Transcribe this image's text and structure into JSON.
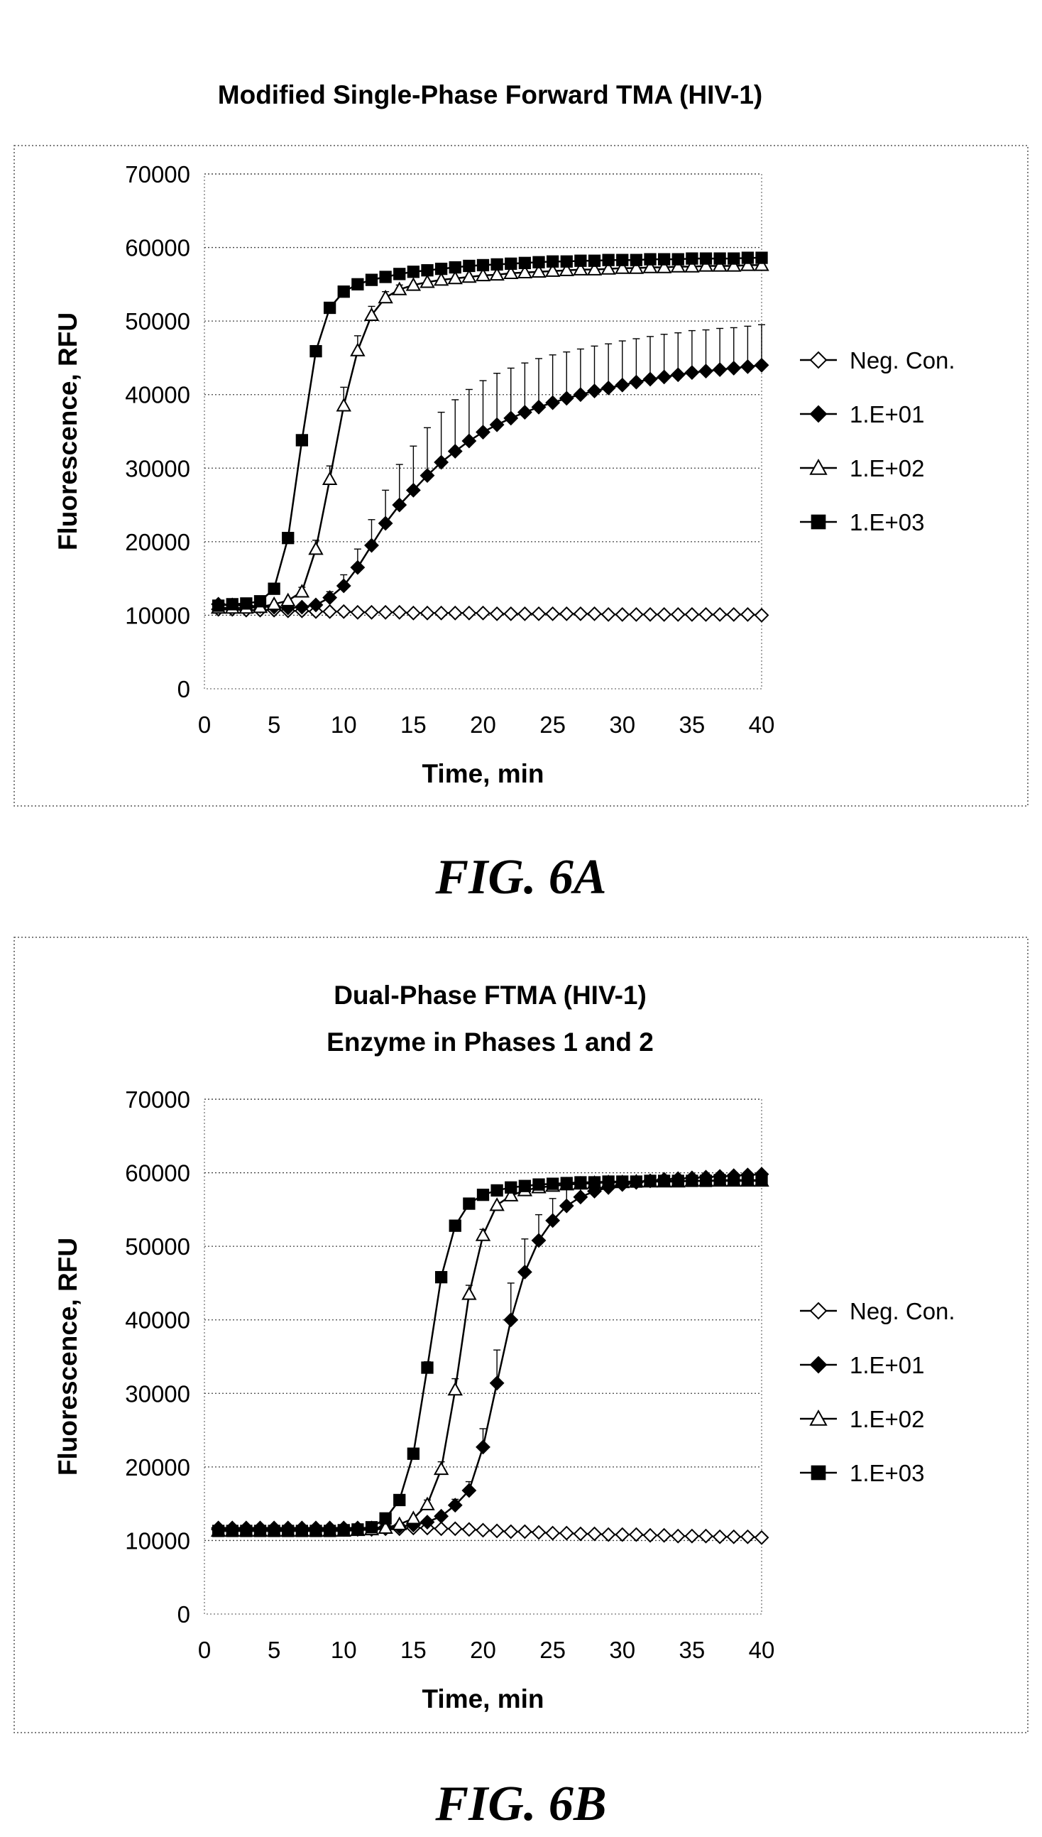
{
  "figures": [
    {
      "caption": "FIG. 6A",
      "chart_data": {
        "type": "line",
        "title": [
          "Modified Single-Phase Forward TMA (HIV-1)"
        ],
        "xlabel": "Time, min",
        "ylabel": "Fluorescence, RFU",
        "xlim": [
          0,
          40
        ],
        "ylim": [
          0,
          70000
        ],
        "xticks": [
          0,
          5,
          10,
          15,
          20,
          25,
          30,
          35,
          40
        ],
        "yticks": [
          0,
          10000,
          20000,
          30000,
          40000,
          50000,
          60000,
          70000
        ],
        "ytick_labels": [
          "0",
          "10000",
          "20000",
          "30000",
          "40000",
          "50000",
          "60000",
          "70000"
        ],
        "xtick_labels": [
          "0",
          "5",
          "10",
          "15",
          "20",
          "25",
          "30",
          "35",
          "40"
        ],
        "grid": "horizontal dotted",
        "legend": "right",
        "x": [
          1,
          2,
          3,
          4,
          5,
          6,
          7,
          8,
          9,
          10,
          11,
          12,
          13,
          14,
          15,
          16,
          17,
          18,
          19,
          20,
          21,
          22,
          23,
          24,
          25,
          26,
          27,
          28,
          29,
          30,
          31,
          32,
          33,
          34,
          35,
          36,
          37,
          38,
          39,
          40
        ],
        "series": [
          {
            "name": "Neg. Con.",
            "marker": "diamond-open",
            "values": [
              10800,
              10800,
              10700,
              10700,
              10700,
              10600,
              10600,
              10500,
              10500,
              10500,
              10400,
              10400,
              10400,
              10400,
              10300,
              10300,
              10300,
              10300,
              10300,
              10300,
              10200,
              10200,
              10200,
              10200,
              10200,
              10200,
              10200,
              10200,
              10100,
              10100,
              10100,
              10100,
              10100,
              10100,
              10100,
              10100,
              10100,
              10100,
              10100,
              10000
            ]
          },
          {
            "name": "1.E+01",
            "marker": "diamond-filled",
            "values": [
              11500,
              11400,
              11300,
              11200,
              11100,
              11000,
              11100,
              11400,
              12400,
              14000,
              16500,
              19500,
              22500,
              25000,
              27000,
              29000,
              30800,
              32300,
              33700,
              34900,
              35900,
              36800,
              37600,
              38300,
              38900,
              39500,
              40000,
              40500,
              40900,
              41300,
              41700,
              42100,
              42400,
              42700,
              43000,
              43200,
              43400,
              43600,
              43800,
              44000
            ],
            "err": [
              200,
              200,
              200,
              200,
              200,
              200,
              200,
              300,
              800,
              1500,
              2500,
              3500,
              4500,
              5500,
              6000,
              6500,
              6800,
              7000,
              7000,
              7000,
              7000,
              6800,
              6700,
              6600,
              6500,
              6300,
              6200,
              6100,
              6000,
              6000,
              5900,
              5800,
              5800,
              5700,
              5700,
              5600,
              5600,
              5500,
              5500,
              5500
            ]
          },
          {
            "name": "1.E+02",
            "marker": "triangle-open",
            "values": [
              11000,
              11000,
              11000,
              11100,
              11500,
              12000,
              13200,
              19000,
              28500,
              38500,
              46000,
              50800,
              53200,
              54300,
              54900,
              55300,
              55600,
              55800,
              56000,
              56200,
              56300,
              56500,
              56600,
              56700,
              56800,
              56900,
              57000,
              57000,
              57100,
              57200,
              57200,
              57300,
              57300,
              57400,
              57400,
              57500,
              57500,
              57500,
              57600,
              57600
            ],
            "err": [
              200,
              200,
              200,
              200,
              200,
              300,
              600,
              1200,
              1800,
              2500,
              2000,
              1200,
              800,
              600,
              500,
              400,
              300,
              300,
              300,
              300,
              300,
              300,
              300,
              300,
              300,
              300,
              300,
              300,
              300,
              300,
              300,
              300,
              300,
              300,
              300,
              300,
              300,
              300,
              300,
              300
            ]
          },
          {
            "name": "1.E+03",
            "marker": "square-filled",
            "values": [
              11300,
              11500,
              11600,
              11900,
              13600,
              20500,
              33800,
              45900,
              51800,
              54000,
              55000,
              55600,
              56000,
              56400,
              56700,
              56900,
              57100,
              57300,
              57500,
              57600,
              57700,
              57800,
              57900,
              58000,
              58100,
              58100,
              58200,
              58200,
              58300,
              58300,
              58300,
              58400,
              58400,
              58400,
              58500,
              58500,
              58500,
              58500,
              58600,
              58600
            ],
            "err": [
              200,
              200,
              200,
              200,
              300,
              500,
              600,
              500,
              400,
              300,
              300,
              300,
              300,
              300,
              300,
              300,
              300,
              300,
              300,
              300,
              300,
              300,
              300,
              300,
              300,
              300,
              300,
              300,
              300,
              300,
              300,
              300,
              300,
              300,
              300,
              300,
              300,
              300,
              300,
              300
            ]
          }
        ]
      }
    },
    {
      "caption": "FIG. 6B",
      "chart_data": {
        "type": "line",
        "title": [
          "Dual-Phase FTMA (HIV-1)",
          "Enzyme in Phases 1 and 2"
        ],
        "xlabel": "Time, min",
        "ylabel": "Fluorescence, RFU",
        "xlim": [
          0,
          40
        ],
        "ylim": [
          0,
          70000
        ],
        "xticks": [
          0,
          5,
          10,
          15,
          20,
          25,
          30,
          35,
          40
        ],
        "yticks": [
          0,
          10000,
          20000,
          30000,
          40000,
          50000,
          60000,
          70000
        ],
        "ytick_labels": [
          "0",
          "10000",
          "20000",
          "30000",
          "40000",
          "50000",
          "60000",
          "70000"
        ],
        "xtick_labels": [
          "0",
          "5",
          "10",
          "15",
          "20",
          "25",
          "30",
          "35",
          "40"
        ],
        "grid": "horizontal dotted",
        "legend": "right",
        "x": [
          1,
          2,
          3,
          4,
          5,
          6,
          7,
          8,
          9,
          10,
          11,
          12,
          13,
          14,
          15,
          16,
          17,
          18,
          19,
          20,
          21,
          22,
          23,
          24,
          25,
          26,
          27,
          28,
          29,
          30,
          31,
          32,
          33,
          34,
          35,
          36,
          37,
          38,
          39,
          40
        ],
        "series": [
          {
            "name": "Neg. Con.",
            "marker": "diamond-open",
            "values": [
              11500,
              11500,
              11500,
              11500,
              11500,
              11500,
              11500,
              11500,
              11500,
              11500,
              11500,
              11500,
              11600,
              11600,
              11700,
              11700,
              11600,
              11600,
              11500,
              11400,
              11300,
              11200,
              11200,
              11100,
              11000,
              11000,
              10900,
              10900,
              10800,
              10800,
              10800,
              10700,
              10700,
              10600,
              10600,
              10600,
              10500,
              10500,
              10500,
              10400
            ]
          },
          {
            "name": "1.E+01",
            "marker": "diamond-filled",
            "values": [
              11700,
              11700,
              11700,
              11700,
              11700,
              11700,
              11700,
              11700,
              11700,
              11700,
              11700,
              11700,
              11800,
              11900,
              12100,
              12500,
              13300,
              14800,
              16800,
              22700,
              31400,
              40000,
              46500,
              50800,
              53500,
              55500,
              56700,
              57500,
              58000,
              58400,
              58700,
              58900,
              59100,
              59200,
              59300,
              59400,
              59500,
              59600,
              59700,
              59800
            ],
            "err": [
              200,
              200,
              200,
              200,
              200,
              200,
              200,
              200,
              200,
              200,
              200,
              200,
              200,
              200,
              200,
              300,
              500,
              800,
              1200,
              2500,
              4500,
              5000,
              4500,
              3500,
              3000,
              2500,
              1800,
              1200,
              800,
              600,
              500,
              400,
              300,
              300,
              300,
              300,
              300,
              300,
              300,
              300
            ]
          },
          {
            "name": "1.E+02",
            "marker": "triangle-open",
            "values": [
              11300,
              11300,
              11300,
              11300,
              11300,
              11300,
              11300,
              11300,
              11300,
              11300,
              11400,
              11500,
              11700,
              12200,
              13000,
              14900,
              19700,
              30500,
              43500,
              51500,
              55600,
              56900,
              57600,
              58000,
              58200,
              58400,
              58500,
              58600,
              58700,
              58700,
              58800,
              58800,
              58800,
              58800,
              58900,
              58900,
              58900,
              58900,
              58900,
              58900
            ],
            "err": [
              200,
              200,
              200,
              200,
              200,
              200,
              200,
              200,
              200,
              200,
              200,
              200,
              200,
              300,
              400,
              600,
              1000,
              1500,
              1200,
              800,
              500,
              400,
              300,
              300,
              300,
              300,
              300,
              300,
              300,
              300,
              300,
              300,
              300,
              300,
              300,
              300,
              300,
              300,
              300,
              300
            ]
          },
          {
            "name": "1.E+03",
            "marker": "square-filled",
            "values": [
              11300,
              11300,
              11300,
              11300,
              11300,
              11300,
              11300,
              11300,
              11300,
              11400,
              11500,
              11800,
              13000,
              15500,
              21800,
              33500,
              45800,
              52800,
              55800,
              57000,
              57600,
              58000,
              58200,
              58400,
              58500,
              58600,
              58700,
              58700,
              58800,
              58800,
              58800,
              58900,
              58900,
              58900,
              58900,
              58900,
              59000,
              59000,
              59000,
              59000
            ],
            "err": [
              200,
              200,
              200,
              200,
              200,
              200,
              200,
              200,
              200,
              200,
              200,
              200,
              300,
              400,
              600,
              800,
              700,
              500,
              400,
              300,
              300,
              300,
              300,
              300,
              300,
              300,
              300,
              300,
              300,
              300,
              300,
              300,
              300,
              300,
              300,
              300,
              300,
              300,
              300,
              300
            ]
          }
        ]
      }
    }
  ]
}
